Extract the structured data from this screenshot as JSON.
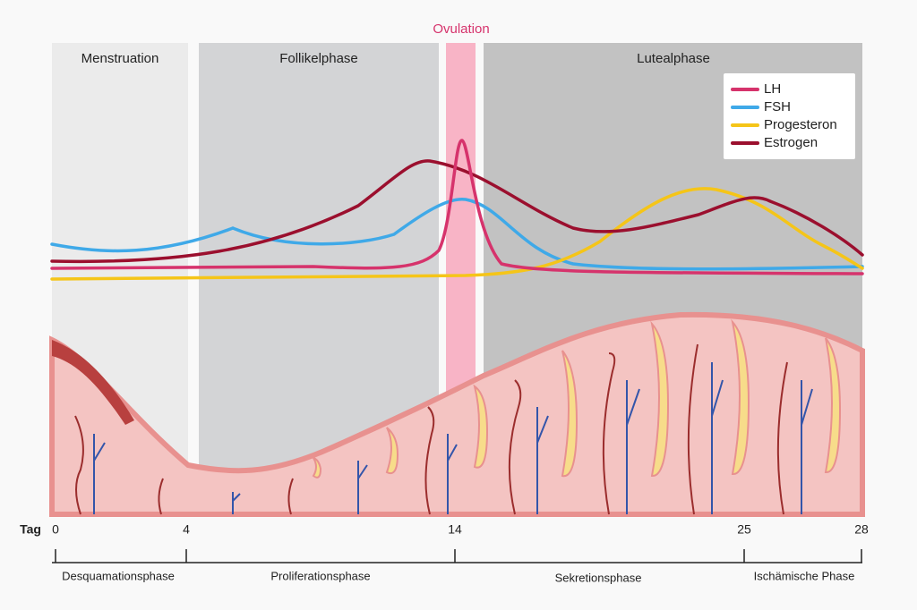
{
  "phases": [
    "Menstruation",
    "Follikelphase",
    "Ovulation",
    "Lutealphase"
  ],
  "legend": [
    {
      "name": "LH",
      "color": "#d6336c"
    },
    {
      "name": "FSH",
      "color": "#3fa9e8"
    },
    {
      "name": "Progesteron",
      "color": "#f5c518"
    },
    {
      "name": "Estrogen",
      "color": "#9b0f2e"
    }
  ],
  "timeline": {
    "label": "Tag",
    "ticks": [
      "0",
      "4",
      "14",
      "25",
      "28"
    ],
    "phases": [
      "Desquamationsphase",
      "Proliferationsphase",
      "Sekretionsphase",
      "Ischämische Phase"
    ]
  }
}
